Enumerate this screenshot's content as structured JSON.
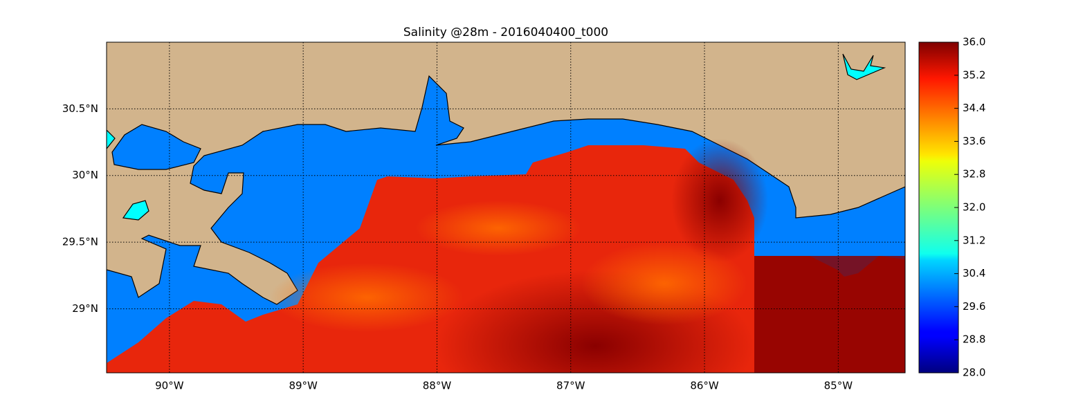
{
  "map": {
    "title": "Salinity @28m - 2016040400_t000",
    "xlim": [
      -90.47,
      -84.5
    ],
    "ylim": [
      28.52,
      31.0
    ],
    "xticks": [
      {
        "value": -90,
        "label": "90°W"
      },
      {
        "value": -89,
        "label": "89°W"
      },
      {
        "value": -88,
        "label": "88°W"
      },
      {
        "value": -87,
        "label": "87°W"
      },
      {
        "value": -86,
        "label": "86°W"
      },
      {
        "value": -85,
        "label": "85°W"
      }
    ],
    "yticks": [
      {
        "value": 29,
        "label": "29°N"
      },
      {
        "value": 29.5,
        "label": "29.5°N"
      },
      {
        "value": 30,
        "label": "30°N"
      },
      {
        "value": 30.5,
        "label": "30.5°N"
      }
    ],
    "grid": true,
    "colorbar": {
      "lim": [
        28,
        36
      ],
      "ticks": [
        {
          "value": 28,
          "label": "28.0"
        },
        28.8,
        29.6,
        30.4,
        31.2,
        {
          "value": 32,
          "label": "32.0"
        },
        32.8,
        33.6,
        34.4,
        35.2,
        {
          "value": 36,
          "label": "36.0"
        }
      ]
    }
  }
}
